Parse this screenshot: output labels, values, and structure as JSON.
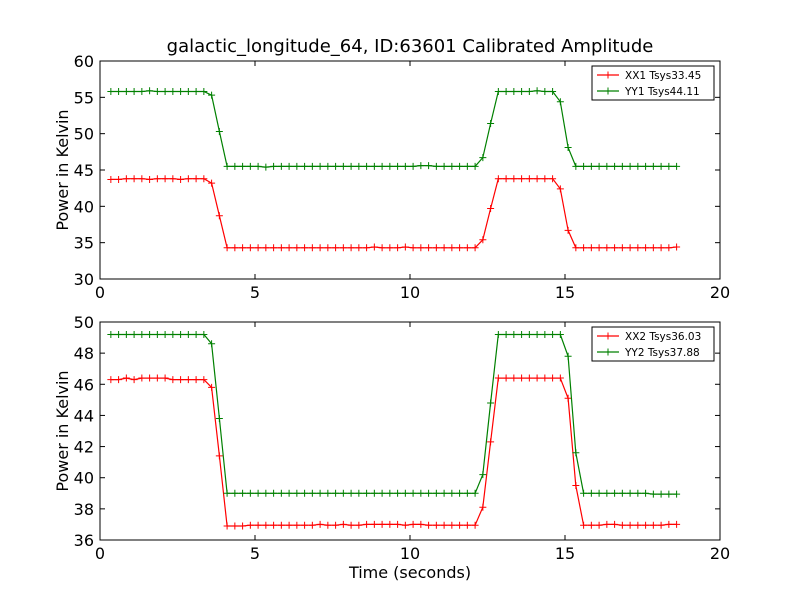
{
  "title": "galactic_longitude_64, ID:63601 Calibrated Amplitude",
  "chart_data": [
    {
      "type": "line",
      "ylabel": "Power in Kelvin",
      "xlabel": "",
      "xlim": [
        0,
        20
      ],
      "ylim": [
        30,
        60
      ],
      "xticks": [
        "0",
        "5",
        "10",
        "15",
        "20"
      ],
      "yticks": [
        "30",
        "35",
        "40",
        "45",
        "50",
        "55",
        "60"
      ],
      "legend_position": "top-right",
      "x": [
        0.35,
        0.6,
        0.85,
        1.1,
        1.35,
        1.6,
        1.85,
        2.1,
        2.35,
        2.6,
        2.85,
        3.1,
        3.35,
        3.6,
        3.85,
        4.1,
        4.35,
        4.6,
        4.85,
        5.1,
        5.35,
        5.6,
        5.85,
        6.1,
        6.35,
        6.6,
        6.85,
        7.1,
        7.35,
        7.6,
        7.85,
        8.1,
        8.35,
        8.6,
        8.85,
        9.1,
        9.35,
        9.6,
        9.85,
        10.1,
        10.35,
        10.6,
        10.85,
        11.1,
        11.35,
        11.6,
        11.85,
        12.1,
        12.35,
        12.6,
        12.85,
        13.1,
        13.35,
        13.6,
        13.85,
        14.1,
        14.35,
        14.6,
        14.85,
        15.1,
        15.35,
        15.6,
        15.85,
        16.1,
        16.35,
        16.6,
        16.85,
        17.1,
        17.35,
        17.6,
        17.85,
        18.1,
        18.35,
        18.6
      ],
      "series": [
        {
          "name": "XX1 Tsys33.45",
          "color": "#ff0000",
          "values": [
            43.7,
            43.7,
            43.8,
            43.8,
            43.8,
            43.7,
            43.8,
            43.8,
            43.8,
            43.7,
            43.8,
            43.8,
            43.8,
            43.2,
            38.7,
            34.3,
            34.3,
            34.3,
            34.3,
            34.3,
            34.3,
            34.3,
            34.3,
            34.3,
            34.3,
            34.3,
            34.3,
            34.3,
            34.3,
            34.3,
            34.3,
            34.3,
            34.3,
            34.3,
            34.4,
            34.3,
            34.3,
            34.3,
            34.4,
            34.3,
            34.3,
            34.3,
            34.3,
            34.3,
            34.3,
            34.3,
            34.3,
            34.3,
            35.4,
            39.7,
            43.8,
            43.8,
            43.8,
            43.8,
            43.8,
            43.8,
            43.8,
            43.8,
            42.4,
            36.7,
            34.3,
            34.3,
            34.3,
            34.3,
            34.3,
            34.3,
            34.3,
            34.3,
            34.3,
            34.3,
            34.3,
            34.3,
            34.3,
            34.4
          ]
        },
        {
          "name": "YY1 Tsys44.11",
          "color": "#008000",
          "values": [
            55.8,
            55.8,
            55.8,
            55.8,
            55.8,
            55.9,
            55.8,
            55.8,
            55.8,
            55.8,
            55.8,
            55.8,
            55.8,
            55.3,
            50.3,
            45.5,
            45.5,
            45.5,
            45.5,
            45.5,
            45.4,
            45.5,
            45.5,
            45.5,
            45.5,
            45.5,
            45.5,
            45.5,
            45.5,
            45.5,
            45.5,
            45.5,
            45.5,
            45.5,
            45.5,
            45.5,
            45.5,
            45.5,
            45.5,
            45.5,
            45.6,
            45.6,
            45.5,
            45.5,
            45.5,
            45.5,
            45.5,
            45.5,
            46.7,
            51.4,
            55.8,
            55.8,
            55.8,
            55.8,
            55.8,
            55.9,
            55.8,
            55.8,
            54.4,
            48.1,
            45.5,
            45.5,
            45.5,
            45.5,
            45.5,
            45.5,
            45.5,
            45.5,
            45.5,
            45.5,
            45.5,
            45.5,
            45.5,
            45.5
          ]
        }
      ]
    },
    {
      "type": "line",
      "ylabel": "Power in Kelvin",
      "xlabel": "Time (seconds)",
      "xlim": [
        0,
        20
      ],
      "ylim": [
        36,
        50
      ],
      "xticks": [
        "0",
        "5",
        "10",
        "15",
        "20"
      ],
      "yticks": [
        "36",
        "38",
        "40",
        "42",
        "44",
        "46",
        "48",
        "50"
      ],
      "legend_position": "top-right",
      "x": [
        0.35,
        0.6,
        0.85,
        1.1,
        1.35,
        1.6,
        1.85,
        2.1,
        2.35,
        2.6,
        2.85,
        3.1,
        3.35,
        3.6,
        3.85,
        4.1,
        4.35,
        4.6,
        4.85,
        5.1,
        5.35,
        5.6,
        5.85,
        6.1,
        6.35,
        6.6,
        6.85,
        7.1,
        7.35,
        7.6,
        7.85,
        8.1,
        8.35,
        8.6,
        8.85,
        9.1,
        9.35,
        9.6,
        9.85,
        10.1,
        10.35,
        10.6,
        10.85,
        11.1,
        11.35,
        11.6,
        11.85,
        12.1,
        12.35,
        12.6,
        12.85,
        13.1,
        13.35,
        13.6,
        13.85,
        14.1,
        14.35,
        14.6,
        14.85,
        15.1,
        15.35,
        15.6,
        15.85,
        16.1,
        16.35,
        16.6,
        16.85,
        17.1,
        17.35,
        17.6,
        17.85,
        18.1,
        18.35,
        18.6
      ],
      "series": [
        {
          "name": "XX2 Tsys36.03",
          "color": "#ff0000",
          "values": [
            46.3,
            46.3,
            46.4,
            46.3,
            46.4,
            46.4,
            46.4,
            46.4,
            46.3,
            46.3,
            46.3,
            46.3,
            46.3,
            45.8,
            41.4,
            36.9,
            36.9,
            36.9,
            36.95,
            36.95,
            36.95,
            36.95,
            36.95,
            36.95,
            36.95,
            36.95,
            36.95,
            37.0,
            36.95,
            36.95,
            37.0,
            36.95,
            36.95,
            37.0,
            37.0,
            37.0,
            37.0,
            37.0,
            36.95,
            37.0,
            37.0,
            36.95,
            36.95,
            36.95,
            36.95,
            36.95,
            36.95,
            36.95,
            38.1,
            42.3,
            46.4,
            46.4,
            46.4,
            46.4,
            46.4,
            46.4,
            46.4,
            46.4,
            46.4,
            45.1,
            39.5,
            36.95,
            36.95,
            36.95,
            37.0,
            37.0,
            36.95,
            36.95,
            36.95,
            36.95,
            36.95,
            36.95,
            37.0,
            37.0
          ]
        },
        {
          "name": "YY2 Tsys37.88",
          "color": "#008000",
          "values": [
            49.2,
            49.2,
            49.2,
            49.2,
            49.2,
            49.2,
            49.2,
            49.2,
            49.2,
            49.2,
            49.2,
            49.2,
            49.2,
            48.6,
            43.8,
            39.0,
            39.0,
            39.0,
            39.0,
            39.0,
            39.0,
            39.0,
            39.0,
            39.0,
            39.0,
            39.0,
            39.0,
            39.0,
            39.0,
            39.0,
            39.0,
            39.0,
            39.0,
            39.0,
            39.0,
            39.0,
            39.0,
            39.0,
            39.0,
            39.0,
            39.0,
            39.0,
            39.0,
            39.0,
            39.0,
            39.0,
            39.0,
            39.0,
            40.2,
            44.8,
            49.2,
            49.2,
            49.2,
            49.2,
            49.2,
            49.2,
            49.2,
            49.2,
            49.2,
            47.8,
            41.6,
            39.0,
            39.0,
            39.0,
            39.0,
            39.0,
            39.0,
            39.0,
            39.0,
            39.0,
            38.95,
            38.95,
            38.95,
            38.95
          ]
        }
      ]
    }
  ]
}
